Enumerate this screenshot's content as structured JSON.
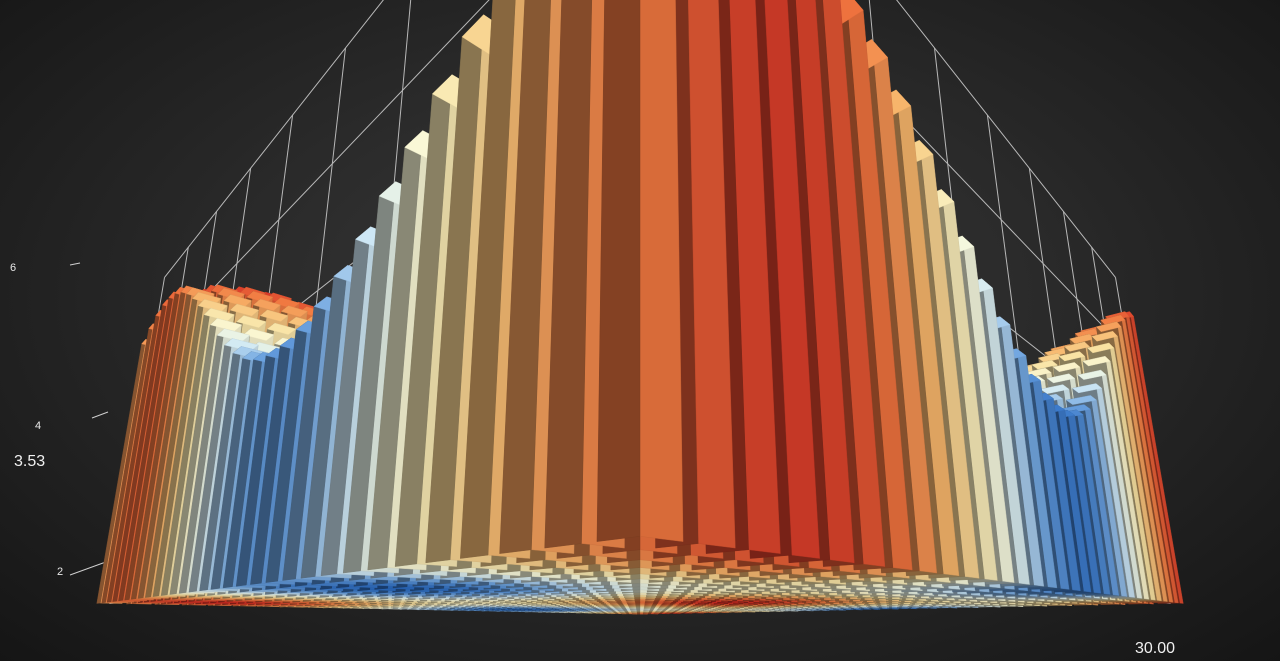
{
  "chart_data": {
    "type": "bar3d",
    "title": "",
    "xlabel": "",
    "ylabel": "",
    "zlabel": "",
    "grid": true,
    "zlim": [
      0,
      8
    ],
    "z_ticks": [
      "2",
      "4",
      "6"
    ],
    "x_range": [
      0,
      30
    ],
    "y_range": [
      0,
      30
    ],
    "grid_size": 31,
    "value_formula": "z = sin(x/4.5 + 0.8) * cos(y/4.5 + 0.3) * 2.2 + 5",
    "readouts": {
      "z_pointer": "3.53",
      "x_pointer": "30.00"
    },
    "color_scale": [
      "#2a6bc2",
      "#6ea4e0",
      "#cfe8f5",
      "#fafadb",
      "#f9e2a2",
      "#f7b46a",
      "#f07840",
      "#d32a22"
    ],
    "background": "#2a2a2a",
    "grid_color": "#b8b8b8"
  }
}
